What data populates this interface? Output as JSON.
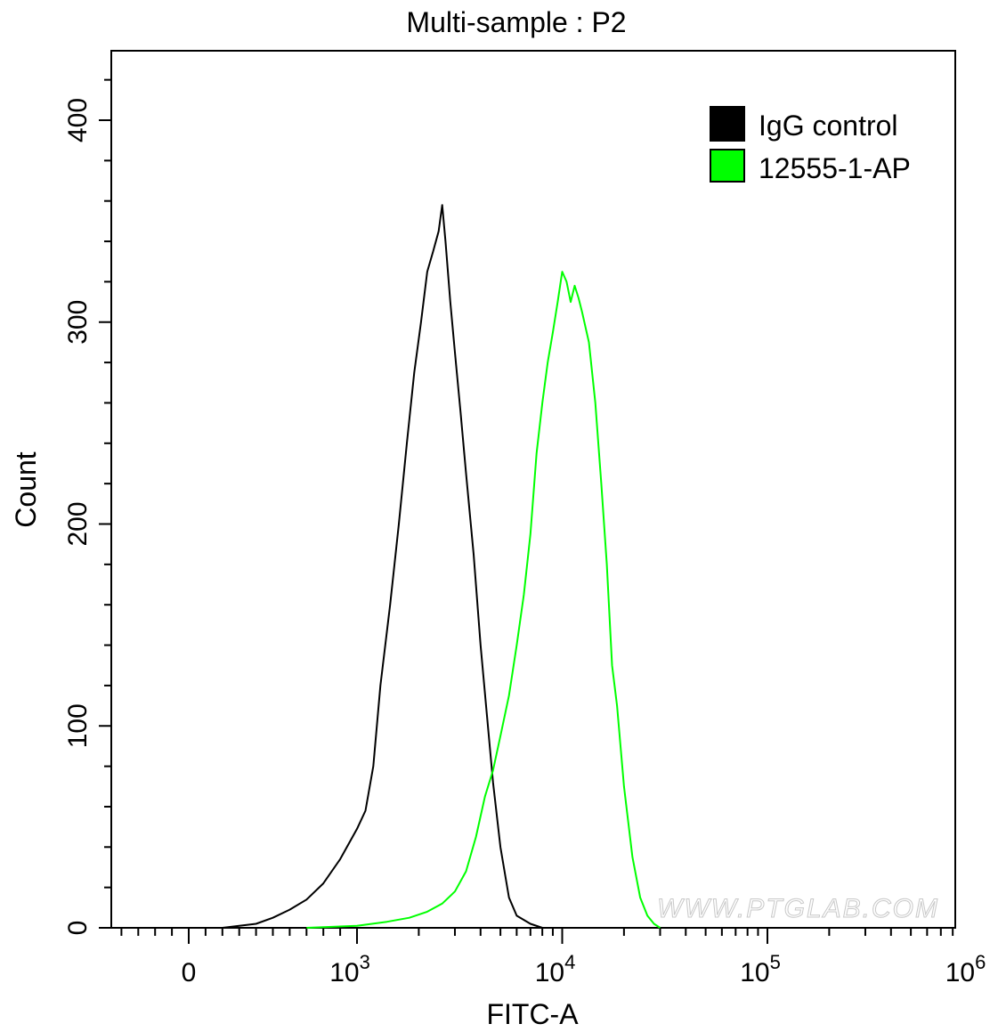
{
  "chart_data": {
    "type": "line",
    "title": "Multi-sample : P2",
    "xlabel": "FITC-A",
    "ylabel": "Count",
    "xscale": "biexponential",
    "ylim": [
      0,
      400
    ],
    "x_ticks": [
      {
        "value": 0,
        "base": "0",
        "exp": ""
      },
      {
        "value": 1000,
        "base": "10",
        "exp": "3"
      },
      {
        "value": 10000,
        "base": "10",
        "exp": "4"
      },
      {
        "value": 100000,
        "base": "10",
        "exp": "5"
      },
      {
        "value": 1000000,
        "base": "10",
        "exp": "6"
      }
    ],
    "y_ticks": [
      0,
      100,
      200,
      300,
      400
    ],
    "legend_position": "top-right",
    "series": [
      {
        "name": "IgG control",
        "color": "#000000",
        "points": [
          [
            0,
            0
          ],
          [
            200,
            0
          ],
          [
            300,
            1
          ],
          [
            400,
            2
          ],
          [
            500,
            5
          ],
          [
            600,
            9
          ],
          [
            700,
            14
          ],
          [
            800,
            22
          ],
          [
            900,
            34
          ],
          [
            1000,
            49
          ],
          [
            1100,
            58
          ],
          [
            1200,
            80
          ],
          [
            1300,
            120
          ],
          [
            1450,
            160
          ],
          [
            1600,
            200
          ],
          [
            1750,
            240
          ],
          [
            1900,
            275
          ],
          [
            2050,
            300
          ],
          [
            2200,
            325
          ],
          [
            2350,
            335
          ],
          [
            2500,
            345
          ],
          [
            2600,
            358
          ],
          [
            2700,
            340
          ],
          [
            2850,
            310
          ],
          [
            3000,
            285
          ],
          [
            3200,
            255
          ],
          [
            3400,
            225
          ],
          [
            3700,
            185
          ],
          [
            4000,
            140
          ],
          [
            4300,
            105
          ],
          [
            4600,
            72
          ],
          [
            5000,
            40
          ],
          [
            5500,
            15
          ],
          [
            6000,
            6
          ],
          [
            7000,
            2
          ],
          [
            8000,
            0
          ]
        ]
      },
      {
        "name": "12555-1-AP",
        "color": "#00ff00",
        "points": [
          [
            700,
            0
          ],
          [
            1000,
            1
          ],
          [
            1400,
            3
          ],
          [
            1800,
            5
          ],
          [
            2200,
            8
          ],
          [
            2600,
            12
          ],
          [
            3000,
            18
          ],
          [
            3400,
            28
          ],
          [
            3800,
            45
          ],
          [
            4200,
            65
          ],
          [
            4600,
            78
          ],
          [
            5000,
            95
          ],
          [
            5500,
            115
          ],
          [
            6000,
            140
          ],
          [
            6500,
            165
          ],
          [
            7000,
            195
          ],
          [
            7500,
            235
          ],
          [
            8000,
            260
          ],
          [
            8500,
            280
          ],
          [
            9000,
            295
          ],
          [
            9500,
            310
          ],
          [
            10000,
            325
          ],
          [
            10500,
            320
          ],
          [
            11000,
            310
          ],
          [
            11500,
            318
          ],
          [
            12000,
            312
          ],
          [
            12500,
            305
          ],
          [
            13500,
            290
          ],
          [
            14500,
            260
          ],
          [
            15500,
            220
          ],
          [
            16500,
            180
          ],
          [
            17500,
            130
          ],
          [
            18500,
            110
          ],
          [
            20000,
            70
          ],
          [
            22000,
            35
          ],
          [
            24000,
            15
          ],
          [
            26000,
            6
          ],
          [
            28000,
            2
          ],
          [
            30000,
            0
          ]
        ]
      }
    ],
    "watermark": "WWW.PTGLAB.COM"
  }
}
